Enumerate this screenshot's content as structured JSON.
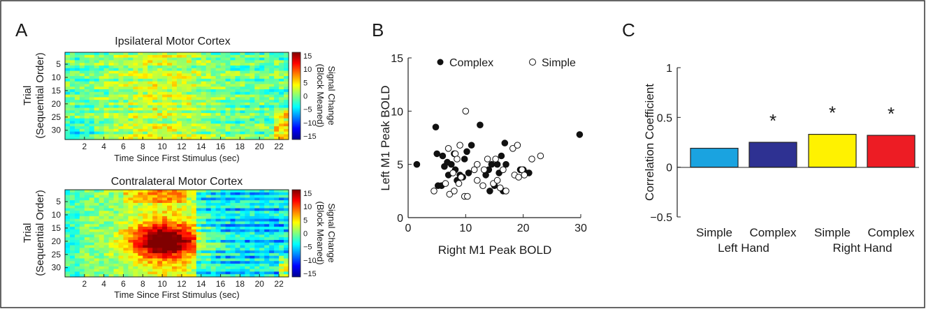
{
  "panels": {
    "a_letter": "A",
    "b_letter": "B",
    "c_letter": "C"
  },
  "chart_data": [
    {
      "type": "heatmap",
      "title": "Ipsilateral Motor Cortex",
      "xlabel": "Time Since First Stimulus (sec)",
      "ylabel_line1": "Trial",
      "ylabel_line2": "(Sequential Order)",
      "x_ticks": [
        "2",
        "4",
        "6",
        "8",
        "10",
        "12",
        "14",
        "16",
        "18",
        "20",
        "22"
      ],
      "y_ticks": [
        "5",
        "10",
        "15",
        "20",
        "25",
        "30"
      ],
      "colorbar_label_line1": "Signal Change",
      "colorbar_label_line2": "(Block Meaned)",
      "colorbar_ticks": [
        "15",
        "10",
        "5",
        "0",
        "−5",
        "−10",
        "−15"
      ],
      "zlim": [
        -15,
        15
      ],
      "colorscale": "jet"
    },
    {
      "type": "heatmap",
      "title": "Contralateral Motor Cortex",
      "xlabel": "Time Since First Stimulus (sec)",
      "ylabel_line1": "Trial",
      "ylabel_line2": "(Sequential Order)",
      "x_ticks": [
        "2",
        "4",
        "6",
        "8",
        "10",
        "12",
        "14",
        "16",
        "18",
        "20",
        "22"
      ],
      "y_ticks": [
        "5",
        "10",
        "15",
        "20",
        "25",
        "30"
      ],
      "colorbar_label_line1": "Signal Change",
      "colorbar_label_line2": "(Block Meaned)",
      "colorbar_ticks": [
        "15",
        "10",
        "5",
        "0",
        "−5",
        "−10",
        "−15"
      ],
      "zlim": [
        -15,
        15
      ],
      "colorscale": "jet"
    },
    {
      "type": "scatter",
      "xlabel": "Right M1 Peak BOLD",
      "ylabel": "Left M1 Peak BOLD",
      "xlim": [
        0,
        30
      ],
      "ylim": [
        0,
        15
      ],
      "x_ticks": [
        "0",
        "10",
        "20",
        "30"
      ],
      "y_ticks": [
        "0",
        "5",
        "10",
        "15"
      ],
      "legend_placement": "top",
      "series": [
        {
          "name": "Complex",
          "marker": "filled-circle",
          "points": [
            [
              1.5,
              5.0
            ],
            [
              4.8,
              8.5
            ],
            [
              5.0,
              6.0
            ],
            [
              5.2,
              3.0
            ],
            [
              5.8,
              3.0
            ],
            [
              6.0,
              5.8
            ],
            [
              6.3,
              4.8
            ],
            [
              6.8,
              5.2
            ],
            [
              7.0,
              4.0
            ],
            [
              7.5,
              5.0
            ],
            [
              8.0,
              6.0
            ],
            [
              8.2,
              4.5
            ],
            [
              8.5,
              3.5
            ],
            [
              9.0,
              4.0
            ],
            [
              9.5,
              3.8
            ],
            [
              9.8,
              5.5
            ],
            [
              10.2,
              6.2
            ],
            [
              10.5,
              4.2
            ],
            [
              11.0,
              6.8
            ],
            [
              12.5,
              8.7
            ],
            [
              13.5,
              4.0
            ],
            [
              14.0,
              4.5
            ],
            [
              14.2,
              2.5
            ],
            [
              14.5,
              5.0
            ],
            [
              15.0,
              3.0
            ],
            [
              15.5,
              5.0
            ],
            [
              15.8,
              4.2
            ],
            [
              16.2,
              5.8
            ],
            [
              16.5,
              2.5
            ],
            [
              16.8,
              7.0
            ],
            [
              17.0,
              5.0
            ],
            [
              19.5,
              4.5
            ],
            [
              20.0,
              4.5
            ],
            [
              20.5,
              4.2
            ],
            [
              21.0,
              4.2
            ],
            [
              29.8,
              7.8
            ]
          ]
        },
        {
          "name": "Simple",
          "marker": "open-circle",
          "points": [
            [
              4.5,
              2.5
            ],
            [
              6.5,
              3.2
            ],
            [
              7.0,
              6.5
            ],
            [
              7.2,
              2.2
            ],
            [
              7.8,
              4.2
            ],
            [
              8.2,
              6.0
            ],
            [
              8.5,
              5.5
            ],
            [
              8.8,
              3.2
            ],
            [
              8.0,
              2.5
            ],
            [
              9.0,
              6.8
            ],
            [
              9.2,
              3.8
            ],
            [
              9.8,
              2.0
            ],
            [
              10.0,
              10.0
            ],
            [
              10.3,
              2.0
            ],
            [
              11.5,
              4.5
            ],
            [
              12.0,
              3.5
            ],
            [
              12.0,
              5.0
            ],
            [
              13.0,
              3.0
            ],
            [
              13.2,
              4.5
            ],
            [
              13.8,
              5.5
            ],
            [
              14.8,
              3.2
            ],
            [
              15.2,
              5.5
            ],
            [
              15.5,
              3.5
            ],
            [
              16.0,
              2.8
            ],
            [
              16.5,
              4.5
            ],
            [
              17.0,
              2.5
            ],
            [
              18.2,
              6.5
            ],
            [
              18.5,
              4.0
            ],
            [
              19.0,
              6.8
            ],
            [
              19.2,
              3.8
            ],
            [
              19.8,
              4.5
            ],
            [
              21.5,
              5.5
            ],
            [
              23.0,
              5.8
            ],
            [
              20.2,
              4.0
            ]
          ]
        }
      ]
    },
    {
      "type": "bar",
      "ylabel": "Correlation Coefficient",
      "ylim": [
        -0.5,
        1
      ],
      "y_ticks": [
        "1",
        "0.5",
        "0",
        "−0.5"
      ],
      "categories": [
        "Simple",
        "Complex",
        "Simple",
        "Complex"
      ],
      "groups": [
        "Left Hand",
        "Right Hand"
      ],
      "values": [
        0.19,
        0.25,
        0.33,
        0.32
      ],
      "colors": [
        "#1aa3e0",
        "#2e3192",
        "#fff200",
        "#ed1c24"
      ],
      "significance": [
        "",
        "*",
        "*",
        "*"
      ]
    }
  ]
}
